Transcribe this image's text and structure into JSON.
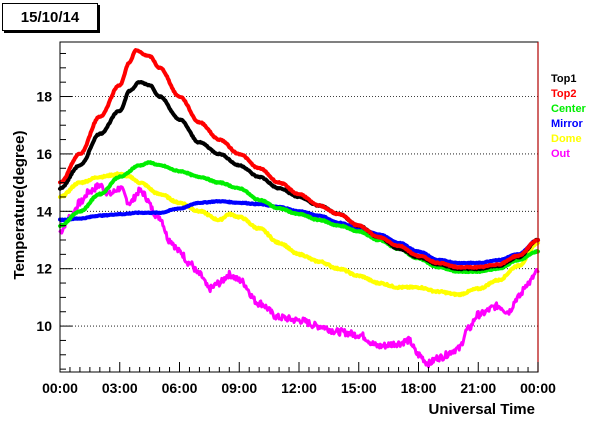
{
  "title": "15/10/14",
  "chart_data": {
    "type": "line",
    "title": "15/10/14",
    "xlabel": "Universal Time",
    "ylabel": "Temperature(degree)",
    "x_tick_labels": [
      "00:00",
      "03:00",
      "06:00",
      "09:00",
      "12:00",
      "15:00",
      "18:00",
      "21:00",
      "00:00"
    ],
    "x_ticks_hours": [
      0,
      3,
      6,
      9,
      12,
      15,
      18,
      21,
      24
    ],
    "y_ticks": [
      10,
      12,
      14,
      16,
      18
    ],
    "xlim": [
      0,
      24
    ],
    "ylim": [
      8.4,
      19.9
    ],
    "grid": "horizontal dotted",
    "legend_position": "right",
    "series": [
      {
        "name": "Top1",
        "color": "#000000",
        "noise": 0.02,
        "points": [
          [
            0,
            14.8
          ],
          [
            1,
            15.6
          ],
          [
            2,
            16.7
          ],
          [
            3,
            17.5
          ],
          [
            3.5,
            18.2
          ],
          [
            4,
            18.5
          ],
          [
            4.5,
            18.4
          ],
          [
            5,
            18.0
          ],
          [
            6,
            17.2
          ],
          [
            7,
            16.4
          ],
          [
            8,
            16.0
          ],
          [
            9,
            15.6
          ],
          [
            10,
            15.2
          ],
          [
            11,
            14.8
          ],
          [
            12,
            14.5
          ],
          [
            13,
            14.2
          ],
          [
            14,
            13.9
          ],
          [
            15,
            13.5
          ],
          [
            16,
            13.1
          ],
          [
            17,
            12.7
          ],
          [
            18,
            12.4
          ],
          [
            19,
            12.15
          ],
          [
            20,
            12.0
          ],
          [
            21,
            12.0
          ],
          [
            22,
            12.1
          ],
          [
            23,
            12.4
          ],
          [
            24,
            13.0
          ]
        ]
      },
      {
        "name": "Top2",
        "color": "#ff0000",
        "noise": 0.02,
        "points": [
          [
            0,
            15.0
          ],
          [
            1,
            16.0
          ],
          [
            2,
            17.3
          ],
          [
            3,
            18.4
          ],
          [
            3.5,
            19.2
          ],
          [
            3.8,
            19.6
          ],
          [
            4.5,
            19.4
          ],
          [
            5,
            19.0
          ],
          [
            6,
            18.0
          ],
          [
            7,
            17.1
          ],
          [
            8,
            16.5
          ],
          [
            9,
            16.0
          ],
          [
            10,
            15.5
          ],
          [
            11,
            15.0
          ],
          [
            12,
            14.6
          ],
          [
            13,
            14.2
          ],
          [
            14,
            13.9
          ],
          [
            15,
            13.5
          ],
          [
            16,
            13.1
          ],
          [
            17,
            12.8
          ],
          [
            18,
            12.45
          ],
          [
            19,
            12.2
          ],
          [
            20,
            12.05
          ],
          [
            21,
            12.05
          ],
          [
            22,
            12.15
          ],
          [
            23,
            12.45
          ],
          [
            24,
            13.0
          ]
        ]
      },
      {
        "name": "Center",
        "color": "#00ee00",
        "noise": 0.02,
        "points": [
          [
            0,
            13.5
          ],
          [
            1,
            14.0
          ],
          [
            2,
            14.6
          ],
          [
            3,
            15.2
          ],
          [
            4,
            15.6
          ],
          [
            4.5,
            15.7
          ],
          [
            5,
            15.6
          ],
          [
            6,
            15.4
          ],
          [
            7,
            15.2
          ],
          [
            8,
            15.0
          ],
          [
            9,
            14.8
          ],
          [
            10,
            14.4
          ],
          [
            11,
            14.1
          ],
          [
            12,
            13.9
          ],
          [
            13,
            13.7
          ],
          [
            14,
            13.5
          ],
          [
            15,
            13.3
          ],
          [
            16,
            13.0
          ],
          [
            17,
            12.7
          ],
          [
            18,
            12.35
          ],
          [
            19,
            12.05
          ],
          [
            20,
            11.9
          ],
          [
            21,
            11.9
          ],
          [
            22,
            12.0
          ],
          [
            23,
            12.3
          ],
          [
            24,
            12.6
          ]
        ]
      },
      {
        "name": "Mirror",
        "color": "#0000ff",
        "noise": 0.015,
        "points": [
          [
            0,
            13.7
          ],
          [
            1,
            13.75
          ],
          [
            2,
            13.85
          ],
          [
            3,
            13.9
          ],
          [
            4,
            13.95
          ],
          [
            5,
            13.95
          ],
          [
            6,
            14.1
          ],
          [
            7,
            14.3
          ],
          [
            8,
            14.35
          ],
          [
            9,
            14.3
          ],
          [
            10,
            14.25
          ],
          [
            11,
            14.15
          ],
          [
            12,
            14.0
          ],
          [
            13,
            13.85
          ],
          [
            14,
            13.6
          ],
          [
            15,
            13.4
          ],
          [
            16,
            13.2
          ],
          [
            17,
            12.9
          ],
          [
            18,
            12.6
          ],
          [
            19,
            12.3
          ],
          [
            20,
            12.2
          ],
          [
            21,
            12.2
          ],
          [
            22,
            12.3
          ],
          [
            23,
            12.5
          ],
          [
            24,
            13.0
          ]
        ]
      },
      {
        "name": "Dome",
        "color": "#ffff00",
        "noise": 0.03,
        "points": [
          [
            0,
            14.5
          ],
          [
            1,
            15.0
          ],
          [
            2,
            15.2
          ],
          [
            3,
            15.3
          ],
          [
            3.5,
            15.2
          ],
          [
            4,
            15.0
          ],
          [
            5,
            14.6
          ],
          [
            6,
            14.3
          ],
          [
            7,
            14.0
          ],
          [
            8,
            13.7
          ],
          [
            8.5,
            13.9
          ],
          [
            9,
            13.8
          ],
          [
            10,
            13.4
          ],
          [
            11,
            12.9
          ],
          [
            12,
            12.5
          ],
          [
            13,
            12.25
          ],
          [
            14,
            12.0
          ],
          [
            15,
            11.75
          ],
          [
            16,
            11.5
          ],
          [
            17,
            11.35
          ],
          [
            18,
            11.35
          ],
          [
            19,
            11.2
          ],
          [
            20,
            11.1
          ],
          [
            21,
            11.3
          ],
          [
            22,
            11.6
          ],
          [
            23,
            12.1
          ],
          [
            24,
            12.9
          ]
        ]
      },
      {
        "name": "Out",
        "color": "#ff00ff",
        "noise": 0.12,
        "points": [
          [
            0,
            13.3
          ],
          [
            0.5,
            13.8
          ],
          [
            1,
            14.3
          ],
          [
            1.5,
            14.7
          ],
          [
            2,
            14.9
          ],
          [
            2.5,
            14.6
          ],
          [
            3,
            14.8
          ],
          [
            3.5,
            14.3
          ],
          [
            4,
            14.7
          ],
          [
            5,
            13.8
          ],
          [
            5.5,
            13.0
          ],
          [
            6,
            12.6
          ],
          [
            6.5,
            12.2
          ],
          [
            7,
            11.8
          ],
          [
            7.5,
            11.3
          ],
          [
            8,
            11.5
          ],
          [
            8.5,
            11.8
          ],
          [
            9,
            11.6
          ],
          [
            10,
            10.8
          ],
          [
            11,
            10.3
          ],
          [
            12,
            10.2
          ],
          [
            13,
            10.0
          ],
          [
            14,
            9.8
          ],
          [
            15,
            9.7
          ],
          [
            16,
            9.3
          ],
          [
            17,
            9.4
          ],
          [
            17.5,
            9.5
          ],
          [
            18,
            9.0
          ],
          [
            18.5,
            8.7
          ],
          [
            19,
            8.9
          ],
          [
            20,
            9.2
          ],
          [
            20.5,
            9.9
          ],
          [
            21,
            10.4
          ],
          [
            22,
            10.7
          ],
          [
            22.5,
            10.5
          ],
          [
            23,
            11.0
          ],
          [
            23.5,
            11.5
          ],
          [
            24,
            11.9
          ]
        ]
      }
    ]
  }
}
